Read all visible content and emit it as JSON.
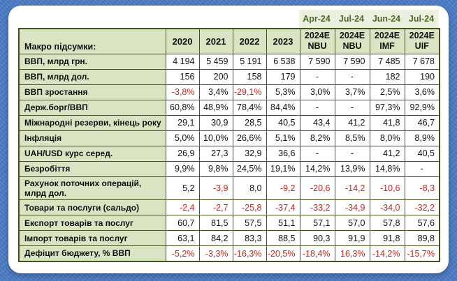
{
  "page": {
    "background_color": "#4a7bc5",
    "card_color": "#ffffff",
    "accent_colors": {
      "header_green": "#d9e4c2",
      "date_strip_green": "#ecf1df",
      "date_text_green": "#50682b",
      "border_olive": "#47531f",
      "negative_red": "#c8221f"
    }
  },
  "chart_data": {
    "type": "table",
    "title": "Макро підсумки:",
    "date_row": [
      "Apr-24",
      "Jul-24",
      "Jun-24",
      "Jul-24"
    ],
    "year_columns": [
      "2020",
      "2021",
      "2022",
      "2023"
    ],
    "forecast_columns": [
      [
        "2024E",
        "NBU"
      ],
      [
        "2024E",
        "NBU"
      ],
      [
        "2024E",
        "IMF"
      ],
      [
        "2024E",
        "UIF"
      ]
    ],
    "rows": [
      {
        "label": "ВВП, млрд грн.",
        "values": [
          "4 194",
          "5 459",
          "5 191",
          "6 538",
          "7 590",
          "7 590",
          "7 485",
          "7 678"
        ]
      },
      {
        "label": "ВВП, млрд дол.",
        "values": [
          "156",
          "200",
          "158",
          "179",
          "-",
          "-",
          "182",
          "190"
        ]
      },
      {
        "label": "ВВП зростання",
        "values": [
          "-3,8%",
          "3,4%",
          "-29,1%",
          "5,3%",
          "3,0%",
          "3,7%",
          "2,5%",
          "3,6%"
        ]
      },
      {
        "label": "Держ.борг/ВВП",
        "values": [
          "60,8%",
          "48,9%",
          "78,4%",
          "84,4%",
          "-",
          "-",
          "97,3%",
          "92,9%"
        ]
      },
      {
        "label": "Міжнародні резерви, кінець року",
        "values": [
          "29,1",
          "30,9",
          "28,5",
          "40,5",
          "43,4",
          "41,2",
          "41,8",
          "46,7"
        ]
      },
      {
        "label": "Інфляція",
        "values": [
          "5,0%",
          "10,0%",
          "26,6%",
          "5,1%",
          "8,2%",
          "8,5%",
          "8,0%",
          "8,9%"
        ]
      },
      {
        "label": "UAH/USD курс серед.",
        "values": [
          "26,9",
          "27,3",
          "32,9",
          "36,6",
          "-",
          "-",
          "41,2",
          "40,5"
        ]
      },
      {
        "label": "Безробіття",
        "values": [
          "9,9%",
          "9,8%",
          "24,5%",
          "19,1%",
          "14,2%",
          "13,9%",
          "14,8%",
          "-"
        ]
      },
      {
        "label": "Рахунок поточних операцій, млрд дол.",
        "values": [
          "5,2",
          "-3,9",
          "8,0",
          "-9,2",
          "-20,6",
          "-14,2",
          "-10,6",
          "-8,3"
        ]
      },
      {
        "label": "Товари та послуги (сальдо)",
        "values": [
          "-2,4",
          "-2,7",
          "-25,8",
          "-37,4",
          "-33,2",
          "-34,9",
          "-34,0",
          "-32,2"
        ]
      },
      {
        "label": "Експорт товарів та послуг",
        "values": [
          "60,7",
          "81,5",
          "57,5",
          "51,1",
          "57,1",
          "57,0",
          "57,8",
          "57,6"
        ]
      },
      {
        "label": "Імпорт товарів та послуг",
        "values": [
          "63,1",
          "84,2",
          "83,3",
          "88,5",
          "90,3",
          "91,9",
          "91,8",
          "89,8"
        ]
      },
      {
        "label": "Дефіцит бюджету,  % ВВП",
        "all_red": true,
        "values": [
          "-5,2%",
          "-3,3%",
          "-16,3%",
          "-20,5%",
          "-18,4%",
          "16,3%",
          "-14,2%",
          "-15,7%"
        ]
      }
    ]
  }
}
